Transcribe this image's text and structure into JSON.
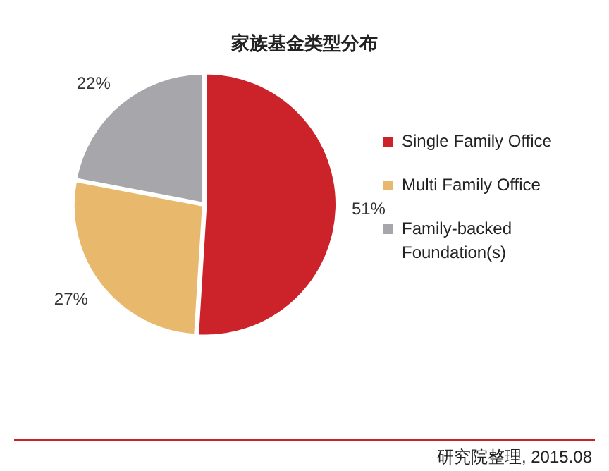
{
  "chart_data": {
    "type": "pie",
    "title": "家族基金类型分布",
    "categories": [
      "Single Family Office",
      "Multi Family Office",
      "Family-backed Foundation(s)"
    ],
    "values": [
      51,
      27,
      22
    ],
    "colors": [
      "#cc2229",
      "#e8b96c",
      "#a6a6ab"
    ],
    "value_labels": [
      "51%",
      "27%",
      "22%"
    ],
    "legend": "right",
    "annotations": [
      "研究院整理, 2015.08"
    ]
  }
}
